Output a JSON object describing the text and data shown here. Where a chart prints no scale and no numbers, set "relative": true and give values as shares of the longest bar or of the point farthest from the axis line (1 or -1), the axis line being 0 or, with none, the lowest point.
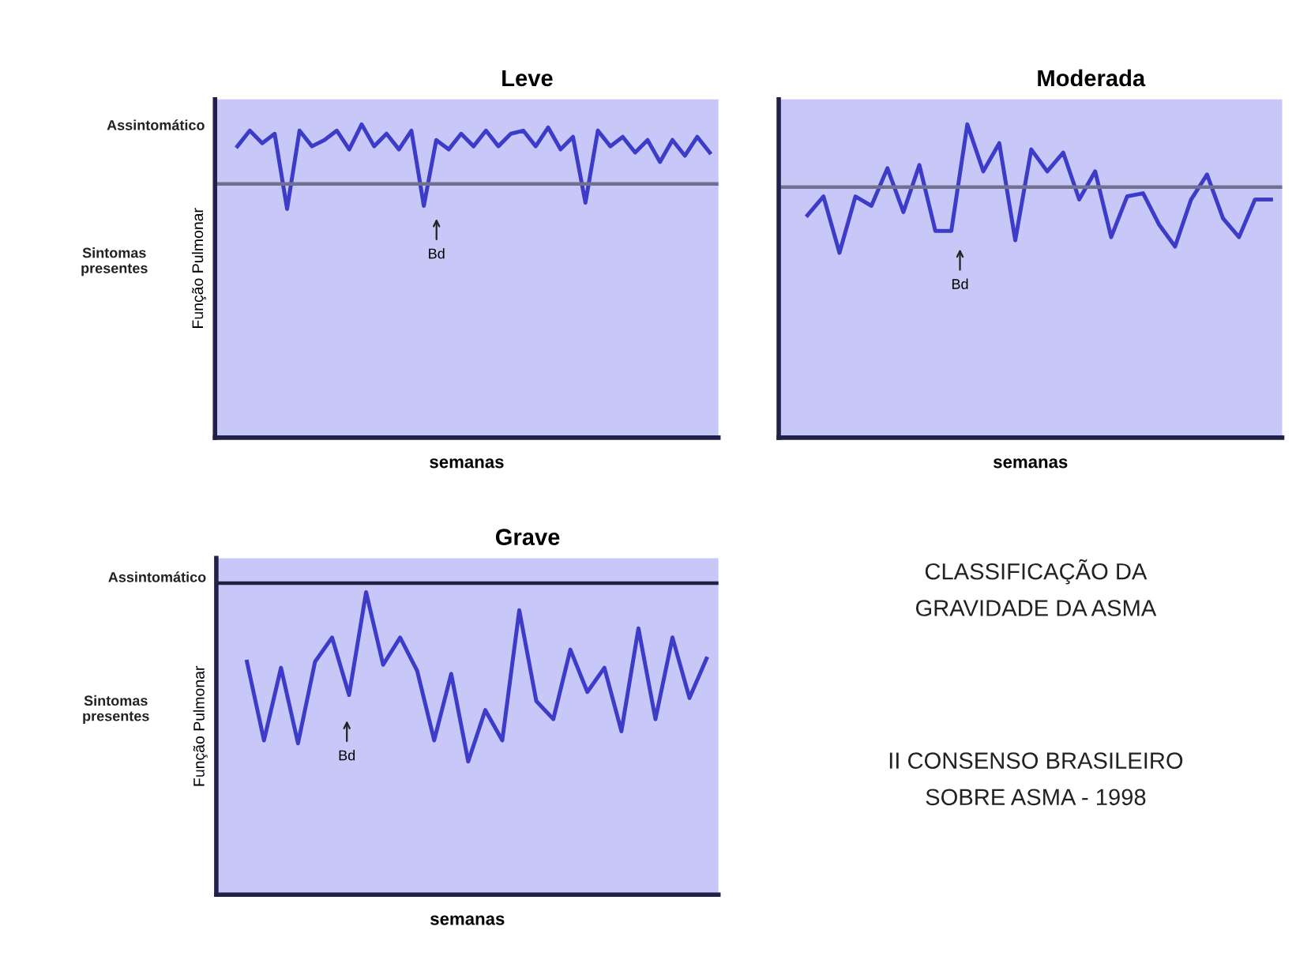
{
  "chart_data": [
    {
      "type": "line",
      "title": "Leve",
      "xlabel": "semanas",
      "ylabel": "Função Pulmonar",
      "relative": true,
      "marker": "none",
      "line_style": "solid",
      "categories": [
        null,
        null,
        null,
        null,
        null,
        null,
        null,
        null,
        null,
        null,
        null,
        null,
        null,
        null,
        null,
        null,
        null,
        null,
        null,
        null,
        null,
        null,
        null,
        null,
        null,
        null,
        null,
        null,
        null,
        null,
        null,
        null,
        null,
        null,
        null,
        null,
        null,
        null,
        null
      ],
      "series": [
        {
          "color": "#3c3cc8",
          "values": [
            0.93,
            0.98,
            0.94,
            0.97,
            0.73,
            0.98,
            0.93,
            0.95,
            0.98,
            0.92,
            1.0,
            0.93,
            0.97,
            0.92,
            0.98,
            0.74,
            0.95,
            0.92,
            0.97,
            0.93,
            0.98,
            0.93,
            0.97,
            0.98,
            0.93,
            0.99,
            0.92,
            0.96,
            0.75,
            0.98,
            0.93,
            0.96,
            0.91,
            0.95,
            0.88,
            0.95,
            0.9,
            0.96,
            0.91
          ]
        }
      ],
      "ref_lines": [
        {
          "axis": "y",
          "value": 0.81,
          "color": "#707090"
        }
      ],
      "annotations": [
        "Assintomático",
        "Sintomas\npresentes",
        "Bd"
      ]
    },
    {
      "type": "line",
      "title": "Moderada",
      "xlabel": "semanas",
      "relative": true,
      "marker": "none",
      "line_style": "solid",
      "categories": [
        null,
        null,
        null,
        null,
        null,
        null,
        null,
        null,
        null,
        null,
        null,
        null,
        null,
        null,
        null,
        null,
        null,
        null,
        null,
        null,
        null,
        null,
        null,
        null,
        null,
        null,
        null,
        null,
        null,
        null
      ],
      "series": [
        {
          "color": "#3c3cc8",
          "values": [
            0.71,
            0.77,
            0.59,
            0.77,
            0.74,
            0.86,
            0.72,
            0.87,
            0.66,
            0.66,
            1.0,
            0.85,
            0.94,
            0.63,
            0.92,
            0.85,
            0.91,
            0.76,
            0.85,
            0.64,
            0.77,
            0.78,
            0.68,
            0.61,
            0.76,
            0.84,
            0.7,
            0.64,
            0.76,
            0.76
          ]
        }
      ],
      "ref_lines": [
        {
          "axis": "y",
          "value": 0.8,
          "color": "#707090"
        }
      ],
      "annotations": [
        "Bd"
      ]
    },
    {
      "type": "line",
      "title": "Grave",
      "xlabel": "semanas",
      "ylabel": "Função Pulmonar",
      "relative": true,
      "marker": "none",
      "line_style": "solid",
      "categories": [
        null,
        null,
        null,
        null,
        null,
        null,
        null,
        null,
        null,
        null,
        null,
        null,
        null,
        null,
        null,
        null,
        null,
        null,
        null,
        null,
        null,
        null,
        null,
        null,
        null,
        null,
        null,
        null
      ],
      "series": [
        {
          "color": "#3c3cc8",
          "values": [
            0.77,
            0.51,
            0.75,
            0.5,
            0.77,
            0.85,
            0.66,
            1.0,
            0.76,
            0.85,
            0.74,
            0.51,
            0.73,
            0.44,
            0.61,
            0.51,
            0.94,
            0.64,
            0.58,
            0.81,
            0.67,
            0.75,
            0.54,
            0.88,
            0.58,
            0.85,
            0.65,
            0.78
          ]
        }
      ],
      "ref_lines": [
        {
          "axis": "y",
          "value": 1.03,
          "color": "#202040"
        }
      ],
      "annotations": [
        "Assintomático",
        "Sintomas\npresentes",
        "Bd"
      ]
    },
    {
      "type": "other",
      "annotations": [
        "CLASSIFICAÇÃO DA\nGRAVIDADE DA ASMA",
        "II CONSENSO BRASILEIRO\nSOBRE ASMA - 1998"
      ]
    }
  ]
}
